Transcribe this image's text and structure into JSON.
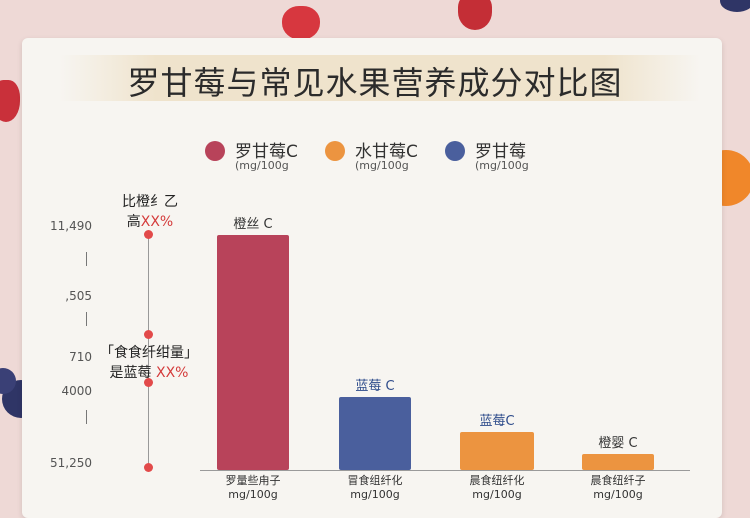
{
  "colors": {
    "background": "#eed9d6",
    "card": "#f7f5f1",
    "series_red": "#b8435a",
    "series_blue": "#4a5f9d",
    "series_orange": "#ec9440",
    "annotation_red": "#e24a4a"
  },
  "decorations": [
    "strawberry-icon",
    "orange-fruit-icon",
    "blueberry-icon"
  ],
  "chart_data": {
    "type": "bar",
    "title": "罗甘莓与常见水果营养成分对比图",
    "legend_position": "top",
    "legend": [
      {
        "name": "罗甘莓C",
        "unit": "(mg/100g",
        "color": "#b8435a"
      },
      {
        "name": "水甘莓C",
        "unit": "(mg/100g",
        "color": "#ec9440"
      },
      {
        "name": "罗甘莓",
        "unit": "(mg/100g",
        "color": "#4a5f9d"
      }
    ],
    "y_ticks": [
      "11,490",
      "|",
      ",505",
      "710",
      "4000",
      "51,250"
    ],
    "grid": false,
    "categories": [
      {
        "label_line1": "罗量些甪子",
        "label_line2": "mg/100g",
        "value_label": "橙丝 C",
        "value": 1000,
        "color": "#b8435a",
        "label_color": "#333333"
      },
      {
        "label_line1": "冒食组纤化",
        "label_line2": "mg/100g",
        "value_label": "蓝莓 C",
        "value": 310,
        "color": "#4a5f9d",
        "label_color": "#2c4a8a"
      },
      {
        "label_line1": "晨食纽纤化",
        "label_line2": "mg/100g",
        "value_label": "蓝莓C",
        "value": 160,
        "color": "#ec9440",
        "label_color": "#2c4a8a"
      },
      {
        "label_line1": "晨食纽纤子",
        "label_line2": "mg/100g",
        "value_label": "橙婴 C",
        "value": 70,
        "color": "#ec9440",
        "label_color": "#333333"
      }
    ],
    "ylim": [
      0,
      1000
    ],
    "annotations": [
      {
        "line1": "比橙纟乙",
        "line2_text": "高",
        "line2_pct": "XX%"
      },
      {
        "line1": "「食食纤绀量」",
        "line2_text": "是蓝莓 ",
        "line2_pct": "XX%"
      }
    ]
  }
}
